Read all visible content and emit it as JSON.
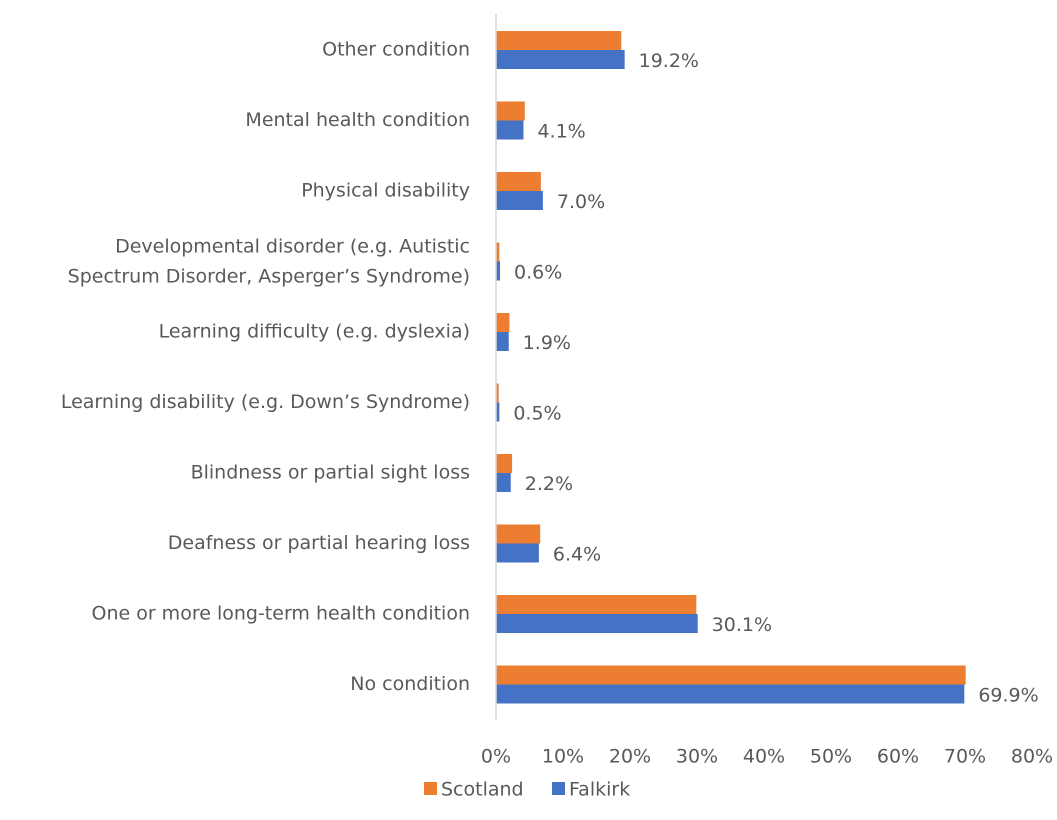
{
  "chart_data": {
    "type": "bar",
    "orientation": "horizontal",
    "categories": [
      "Other condition",
      "Mental health condition",
      "Physical disability",
      "Developmental disorder (e.g. Autistic Spectrum Disorder, Asperger’s Syndrome)",
      "Learning difficulty (e.g. dyslexia)",
      "Learning disability (e.g. Down’s Syndrome)",
      "Blindness or partial sight loss",
      "Deafness or partial hearing loss",
      "One or more long-term health condition",
      "No condition"
    ],
    "series": [
      {
        "name": "Scotland",
        "color": "#ed7d31",
        "values": [
          18.7,
          4.3,
          6.7,
          0.5,
          2.0,
          0.4,
          2.4,
          6.6,
          29.9,
          70.1
        ]
      },
      {
        "name": "Falkirk",
        "color": "#4472c4",
        "values": [
          19.2,
          4.1,
          7.0,
          0.6,
          1.9,
          0.5,
          2.2,
          6.4,
          30.1,
          69.9
        ],
        "value_labels": [
          "19.2%",
          "4.1%",
          "7.0%",
          "0.6%",
          "1.9%",
          "0.5%",
          "2.2%",
          "6.4%",
          "30.1%",
          "69.9%"
        ]
      }
    ],
    "xlim": [
      0,
      80
    ],
    "xticks": [
      {
        "value": 0,
        "label": "0%"
      },
      {
        "value": 10,
        "label": "10%"
      },
      {
        "value": 20,
        "label": "20%"
      },
      {
        "value": 30,
        "label": "30%"
      },
      {
        "value": 40,
        "label": "40%"
      },
      {
        "value": 50,
        "label": "50%"
      },
      {
        "value": 60,
        "label": "60%"
      },
      {
        "value": 70,
        "label": "70%"
      },
      {
        "value": 80,
        "label": "80%"
      }
    ],
    "legend": "bottom"
  }
}
